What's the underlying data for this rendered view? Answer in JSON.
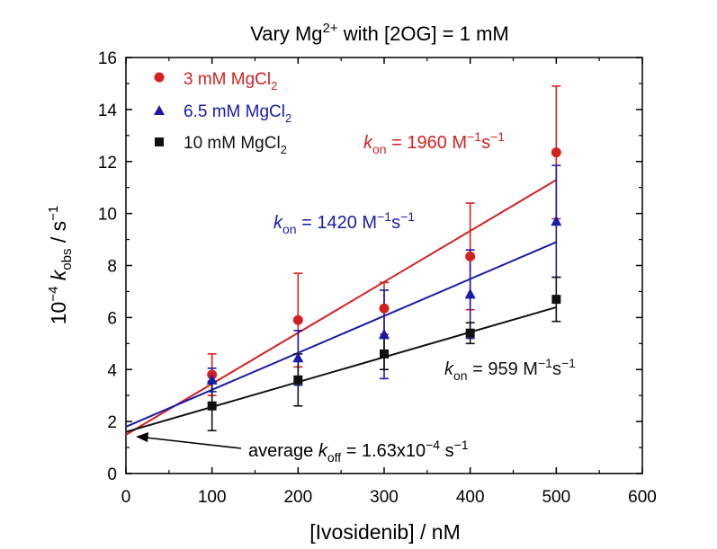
{
  "chart_data": {
    "type": "scatter",
    "title": {
      "pre": "Vary Mg",
      "sup": "2+",
      "post": " with [2OG] = 1 mM"
    },
    "xlabel": "[Ivosidenib] / nM",
    "ylabel": {
      "pre": "10",
      "sup": "−4",
      "italic": "k",
      "sub": "obs",
      "post": " / s",
      "post_sup": "−1"
    },
    "xlim": [
      0,
      600
    ],
    "ylim": [
      0,
      16
    ],
    "xticks": [
      "0",
      "100",
      "200",
      "300",
      "400",
      "500",
      "600"
    ],
    "yticks": [
      "0",
      "2",
      "4",
      "6",
      "8",
      "10",
      "12",
      "14",
      "16"
    ],
    "legend_position": "top-left",
    "series": [
      {
        "name": "3 mM MgCl2",
        "legend": {
          "pre": "3 mM MgCl",
          "sub": "2"
        },
        "color": "#d62020",
        "marker": "circle",
        "x": [
          100,
          200,
          300,
          400,
          500
        ],
        "y": [
          3.8,
          5.9,
          6.35,
          8.35,
          12.35
        ],
        "err": [
          0.8,
          1.8,
          1.0,
          2.05,
          2.55
        ],
        "fit": {
          "intercept": 1.49,
          "slope": 0.0196
        },
        "kon_label": {
          "italic": "k",
          "sub": "on",
          "value": " = 1960 M",
          "sup1": "−1",
          "s": "s",
          "sup2": "−1"
        }
      },
      {
        "name": "6.5 mM MgCl2",
        "legend": {
          "pre": "6.5 mM MgCl",
          "sub": "2"
        },
        "color": "#1a1aaa",
        "marker": "triangle",
        "x": [
          100,
          200,
          300,
          400,
          500
        ],
        "y": [
          3.6,
          4.45,
          5.35,
          6.9,
          9.7
        ],
        "err": [
          0.45,
          1.05,
          1.7,
          1.7,
          2.15
        ],
        "fit": {
          "intercept": 1.8,
          "slope": 0.0142
        },
        "kon_label": {
          "italic": "k",
          "sub": "on",
          "value": " = 1420 M",
          "sup1": "−1",
          "s": "s",
          "sup2": "−1"
        }
      },
      {
        "name": "10 mM MgCl2",
        "legend": {
          "pre": "10 mM MgCl",
          "sub": "2"
        },
        "color": "#111111",
        "marker": "square",
        "x": [
          100,
          200,
          300,
          400,
          500
        ],
        "y": [
          2.6,
          3.6,
          4.6,
          5.4,
          6.7
        ],
        "err": [
          0.95,
          1.0,
          0.6,
          0.4,
          0.85
        ],
        "fit": {
          "intercept": 1.6,
          "slope": 0.00959
        },
        "kon_label": {
          "italic": "k",
          "sub": "on",
          "value": " = 959 M",
          "sup1": "−1",
          "s": "s",
          "sup2": "−1"
        }
      }
    ],
    "annotation": {
      "pre": "average ",
      "italic": "k",
      "sub": "off",
      "value": " = 1.63x10",
      "sup": "−4",
      "post": " s",
      "post_sup": "−1",
      "arrow_to": [
        0,
        1.63
      ]
    }
  }
}
